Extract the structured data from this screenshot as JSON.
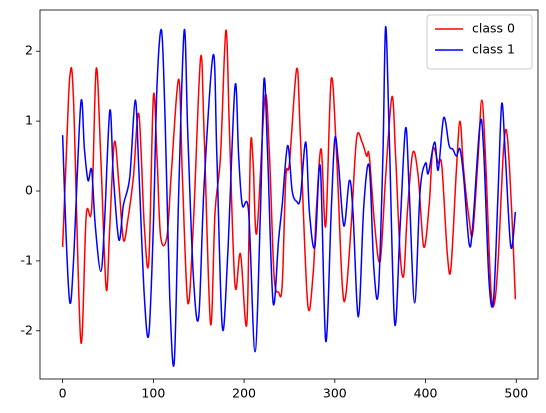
{
  "chart_data": {
    "type": "line",
    "xlim": [
      -24.95,
      523.95
    ],
    "ylim": [
      -2.69,
      2.59
    ],
    "xticks": [
      0,
      100,
      200,
      300,
      400,
      500
    ],
    "yticks": [
      -2,
      -1,
      0,
      1,
      2
    ],
    "legend": "upper right",
    "series": [
      {
        "name": "class 0",
        "color": "#ff0000",
        "x": [
          0,
          4,
          8,
          12,
          20,
          26,
          32,
          37,
          42,
          48,
          52,
          57,
          62,
          67,
          72,
          78,
          84,
          90,
          95,
          100,
          104,
          108,
          115,
          120,
          128,
          132,
          138,
          144,
          152,
          156,
          163,
          168,
          174,
          180,
          184,
          190,
          196,
          203,
          207,
          210,
          214,
          223,
          228,
          233,
          238,
          242,
          246,
          250,
          258,
          262,
          270,
          276,
          280,
          285,
          290,
          296,
          302,
          308,
          312,
          318,
          324,
          330,
          335,
          338,
          344,
          350,
          356,
          363,
          367,
          372,
          376,
          380,
          386,
          392,
          398,
          404,
          408,
          414,
          418,
          424,
          428,
          434,
          438,
          442,
          448,
          452,
          458,
          462,
          466,
          472,
          476,
          480,
          486,
          490,
          495,
          499
        ],
        "values": [
          -0.8,
          0.5,
          1.65,
          1.3,
          -2.15,
          -0.35,
          -0.25,
          1.75,
          0.5,
          -1.4,
          -0.5,
          0.7,
          0.1,
          -0.7,
          -0.4,
          0.2,
          1.1,
          -0.5,
          -1.0,
          1.35,
          0.5,
          -0.65,
          -0.65,
          0.3,
          1.6,
          0.2,
          -1.6,
          -0.5,
          1.9,
          0.8,
          -1.9,
          -0.3,
          0.5,
          2.3,
          0.8,
          -1.35,
          -0.9,
          -1.9,
          0.6,
          0.4,
          -0.6,
          1.35,
          0.5,
          -1.2,
          -1.45,
          -1.35,
          0.2,
          0.4,
          1.75,
          0.8,
          -1.6,
          -1.2,
          -0.2,
          0.6,
          -0.5,
          1.6,
          0.5,
          -1.3,
          -1.5,
          -0.5,
          0.75,
          0.7,
          0.5,
          0.5,
          -0.5,
          -1.0,
          0.2,
          1.35,
          0.5,
          -0.9,
          -1.2,
          -0.3,
          0.55,
          0.2,
          -0.8,
          -0.2,
          0.6,
          0.4,
          0.35,
          -0.9,
          -1.1,
          0.3,
          1.0,
          0.3,
          -0.4,
          -0.6,
          0.5,
          1.3,
          0.5,
          -1.4,
          -1.6,
          -1.0,
          0.6,
          0.8,
          -0.3,
          -1.55
        ]
      },
      {
        "name": "class 1",
        "color": "#0000ff",
        "x": [
          0,
          4,
          8,
          12,
          20,
          24,
          28,
          32,
          36,
          42,
          46,
          52,
          56,
          62,
          67,
          74,
          80,
          84,
          90,
          95,
          100,
          104,
          109,
          113,
          118,
          123,
          128,
          134,
          138,
          144,
          150,
          156,
          166,
          170,
          176,
          182,
          190,
          194,
          198,
          205,
          212,
          218,
          222,
          226,
          232,
          238,
          242,
          248,
          253,
          258,
          262,
          268,
          272,
          278,
          284,
          290,
          296,
          300,
          304,
          310,
          316,
          320,
          326,
          332,
          338,
          343,
          348,
          353,
          356,
          360,
          366,
          372,
          378,
          382,
          388,
          394,
          400,
          403,
          410,
          414,
          420,
          426,
          430,
          434,
          438,
          442,
          448,
          452,
          460,
          464,
          470,
          475,
          480,
          484,
          488,
          494,
          499
        ],
        "values": [
          0.8,
          -0.7,
          -1.6,
          -1.0,
          1.25,
          0.6,
          0.15,
          0.3,
          -0.5,
          -1.15,
          -0.5,
          1.15,
          0.2,
          -0.7,
          -0.2,
          0.2,
          1.3,
          0.3,
          -1.5,
          -2.05,
          -0.5,
          1.5,
          2.3,
          1.0,
          -1.5,
          -2.45,
          0.0,
          2.3,
          0.8,
          -1.2,
          -1.8,
          0.1,
          1.95,
          0.5,
          -1.95,
          -0.9,
          1.5,
          0.5,
          -0.2,
          -0.3,
          -2.3,
          -0.3,
          1.6,
          0.5,
          -1.6,
          -0.7,
          -0.2,
          0.65,
          0.0,
          -0.15,
          -0.1,
          0.7,
          -0.3,
          -0.8,
          0.35,
          -2.15,
          -0.3,
          0.75,
          0.4,
          -0.5,
          0.15,
          -0.3,
          -1.8,
          -0.2,
          0.35,
          -1.1,
          -1.45,
          0.5,
          2.35,
          0.8,
          -1.9,
          -0.5,
          0.9,
          0.0,
          -1.6,
          0.0,
          0.4,
          0.25,
          0.7,
          0.3,
          1.05,
          0.65,
          0.6,
          0.5,
          0.6,
          0.2,
          -0.75,
          -0.5,
          0.95,
          0.6,
          -1.3,
          -1.55,
          0.0,
          1.25,
          0.5,
          -0.8,
          -0.3
        ]
      }
    ]
  }
}
